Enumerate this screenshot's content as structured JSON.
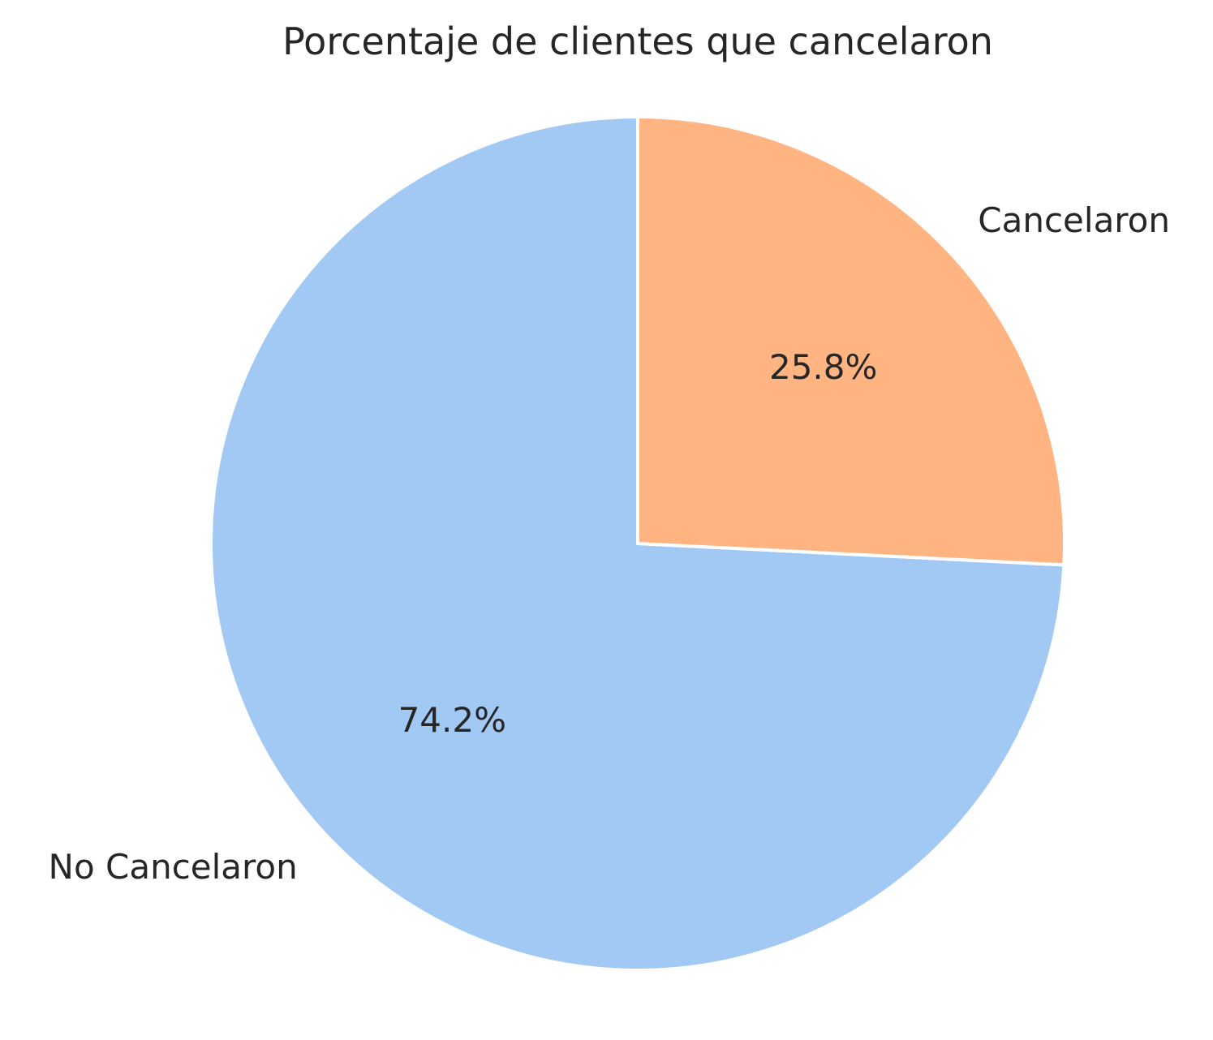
{
  "chart_data": {
    "type": "pie",
    "title": "Porcentaje de clientes que cancelaron",
    "categories": [
      "No Cancelaron",
      "Cancelaron"
    ],
    "values": [
      74.2,
      25.8
    ],
    "unit": "%",
    "data_labels": [
      "74.2%",
      "25.8%"
    ],
    "colors": [
      "#a1c9f4",
      "#ffb482"
    ],
    "start_angle_deg": 90,
    "direction": "counterclockwise",
    "wedge_edge_color": "#ffffff",
    "legend": "none",
    "grid": false
  }
}
